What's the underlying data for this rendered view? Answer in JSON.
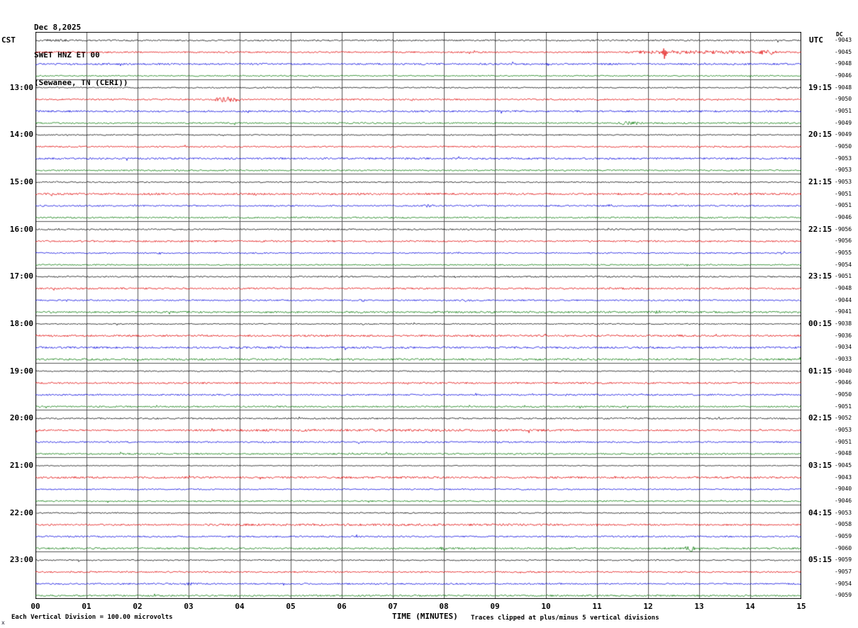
{
  "header": {
    "date": "Dec 8,2025",
    "station": "SWET HNZ ET 00",
    "location": "(Sewanee, TN (CERI))"
  },
  "axes": {
    "left_label": "CST",
    "right_label": "UTC",
    "dc_label": "DC",
    "x_title": "TIME (MINUTES)",
    "x_ticks": [
      "00",
      "01",
      "02",
      "03",
      "04",
      "05",
      "06",
      "07",
      "08",
      "09",
      "10",
      "11",
      "12",
      "13",
      "14",
      "15"
    ]
  },
  "footer": {
    "left": "Each Vertical Division =  100.00 microvolts",
    "right": "Traces clipped at plus/minus 5 vertical divisions",
    "corner": "x"
  },
  "chart_data": {
    "type": "line",
    "kind": "helicorder-seismogram",
    "title": "SWET HNZ ET 00 (Sewanee, TN (CERI)) Dec 8,2025",
    "xlabel": "TIME (MINUTES)",
    "x_range": [
      0,
      15
    ],
    "minutes_per_line": 15,
    "rows": 48,
    "grid": true,
    "trace_color_cycle": [
      "#000000",
      "#e00000",
      "#0000dd",
      "#007700"
    ],
    "hour_rows": [
      {
        "row": 4,
        "cst": "13:00",
        "utc": "19:15"
      },
      {
        "row": 8,
        "cst": "14:00",
        "utc": "20:15"
      },
      {
        "row": 12,
        "cst": "15:00",
        "utc": "21:15"
      },
      {
        "row": 16,
        "cst": "16:00",
        "utc": "22:15"
      },
      {
        "row": 20,
        "cst": "17:00",
        "utc": "23:15"
      },
      {
        "row": 24,
        "cst": "18:00",
        "utc": "00:15"
      },
      {
        "row": 28,
        "cst": "19:00",
        "utc": "01:15"
      },
      {
        "row": 32,
        "cst": "20:00",
        "utc": "02:15"
      },
      {
        "row": 36,
        "cst": "21:00",
        "utc": "03:15"
      },
      {
        "row": 40,
        "cst": "22:00",
        "utc": "04:15"
      },
      {
        "row": 44,
        "cst": "23:00",
        "utc": "05:15"
      }
    ],
    "dc_values": [
      "-9043",
      "-9045",
      "-9048",
      "-9046",
      "-9048",
      "-9050",
      "-9051",
      "-9049",
      "-9049",
      "-9050",
      "-9053",
      "-9053",
      "-9053",
      "-9051",
      "-9051",
      "-9046",
      "-9056",
      "-9056",
      "-9055",
      "-9054",
      "-9051",
      "-9048",
      "-9044",
      "-9041",
      "-9038",
      "-9036",
      "-9034",
      "-9033",
      "-9040",
      "-9046",
      "-9050",
      "-9051",
      "-9052",
      "-9053",
      "-9051",
      "-9048",
      "-9045",
      "-9043",
      "-9040",
      "-9046",
      "-9053",
      "-9058",
      "-9059",
      "-9060",
      "-9059",
      "-9057",
      "-9054",
      "-9059"
    ],
    "events": [
      {
        "row": 0,
        "start": 0.1,
        "end": 0.95,
        "amp": 1.5
      },
      {
        "row": 1,
        "start": 10.9,
        "end": 15.2,
        "amp": 2.4
      },
      {
        "row": 1,
        "start": 12.28,
        "end": 12.38,
        "amp": 10
      },
      {
        "row": 1,
        "start": 14.1,
        "end": 14.6,
        "amp": 3.6
      },
      {
        "row": 5,
        "start": 3.4,
        "end": 4.15,
        "amp": 3.8
      },
      {
        "row": 7,
        "start": 11.3,
        "end": 12.05,
        "amp": 2.3
      },
      {
        "row": 10,
        "start": 11.15,
        "end": 11.4,
        "amp": 1.8
      },
      {
        "row": 14,
        "start": 7.45,
        "end": 7.9,
        "amp": 2.2
      },
      {
        "row": 14,
        "start": 11.15,
        "end": 11.45,
        "amp": 2.0
      },
      {
        "row": 22,
        "start": 6.3,
        "end": 6.6,
        "amp": 2.0
      },
      {
        "row": 22,
        "start": 8.3,
        "end": 8.6,
        "amp": 2.0
      },
      {
        "row": 23,
        "start": 12.05,
        "end": 12.4,
        "amp": 2.2
      },
      {
        "row": 33,
        "start": 0.0,
        "end": 15.2,
        "amp": 1.6
      },
      {
        "row": 41,
        "start": 0.0,
        "end": 15.2,
        "amp": 1.5
      },
      {
        "row": 43,
        "start": 7.9,
        "end": 8.1,
        "amp": 3.0
      },
      {
        "row": 43,
        "start": 12.7,
        "end": 12.95,
        "amp": 4.5
      },
      {
        "row": 46,
        "start": 2.85,
        "end": 3.2,
        "amp": 2.0
      }
    ]
  }
}
